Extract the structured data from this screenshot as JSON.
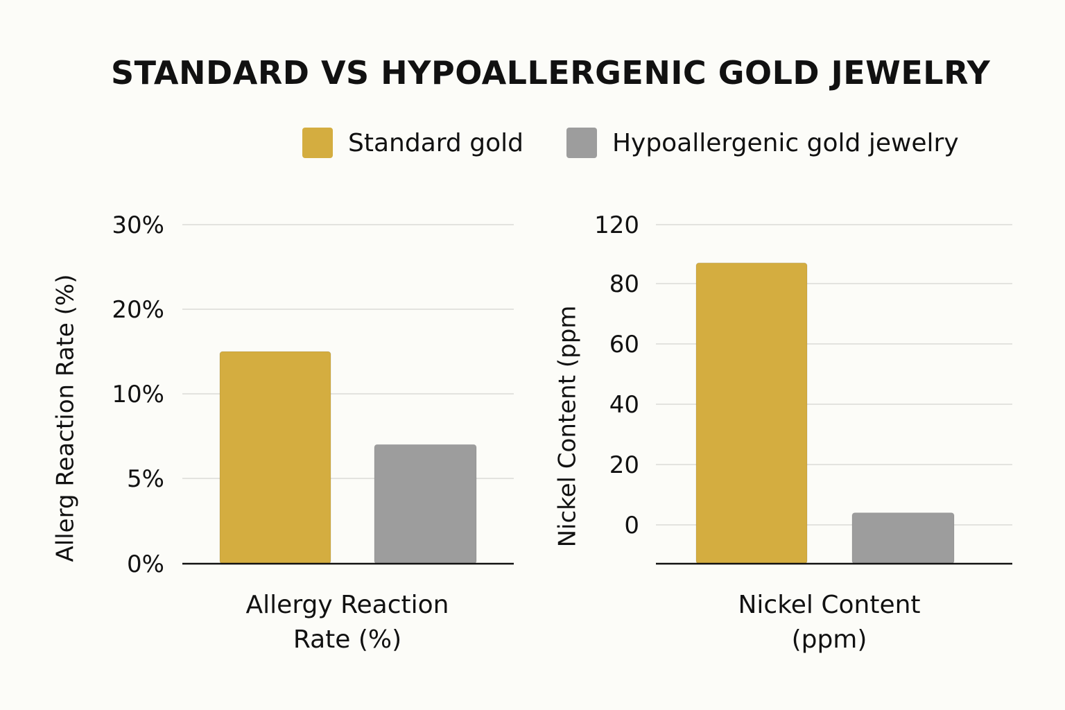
{
  "title": "STANDARD VS HYPOALLERGENIC GOLD JEWELRY",
  "legend": [
    {
      "label": "Standard gold",
      "color": "#d4ad40"
    },
    {
      "label": "Hypoallergenic gold jewelry",
      "color": "#9d9d9d"
    }
  ],
  "chart_data": [
    {
      "type": "bar",
      "ylabel": "Allerg Reaction Rate (%)",
      "xlabel": [
        "Allergy Reaction",
        "Rate (%)"
      ],
      "yticks": [
        {
          "label": "0%",
          "value": 0
        },
        {
          "label": "5%",
          "value": 5
        },
        {
          "label": "10%",
          "value": 10
        },
        {
          "label": "20%",
          "value": 20
        },
        {
          "label": "30%",
          "value": 30
        }
      ],
      "series": [
        {
          "name": "Standard gold",
          "value": 15,
          "color": "#d4ad40"
        },
        {
          "name": "Hypoallergenic gold jewelry",
          "value": 7,
          "color": "#9d9d9d"
        }
      ],
      "grid": true
    },
    {
      "type": "bar",
      "ylabel": "Nickel Content (ppm",
      "xlabel": [
        "Nickel Content",
        "(ppm)"
      ],
      "yticks": [
        {
          "label": "0",
          "value": 0
        },
        {
          "label": "20",
          "value": 20
        },
        {
          "label": "40",
          "value": 40
        },
        {
          "label": "60",
          "value": 60
        },
        {
          "label": "80",
          "value": 80
        },
        {
          "label": "120",
          "value": 120
        }
      ],
      "series": [
        {
          "name": "Standard gold",
          "value": 94,
          "color": "#d4ad40"
        },
        {
          "name": "Hypoallergenic gold jewelry",
          "value": 4,
          "color": "#9d9d9d"
        }
      ],
      "grid": true
    }
  ]
}
